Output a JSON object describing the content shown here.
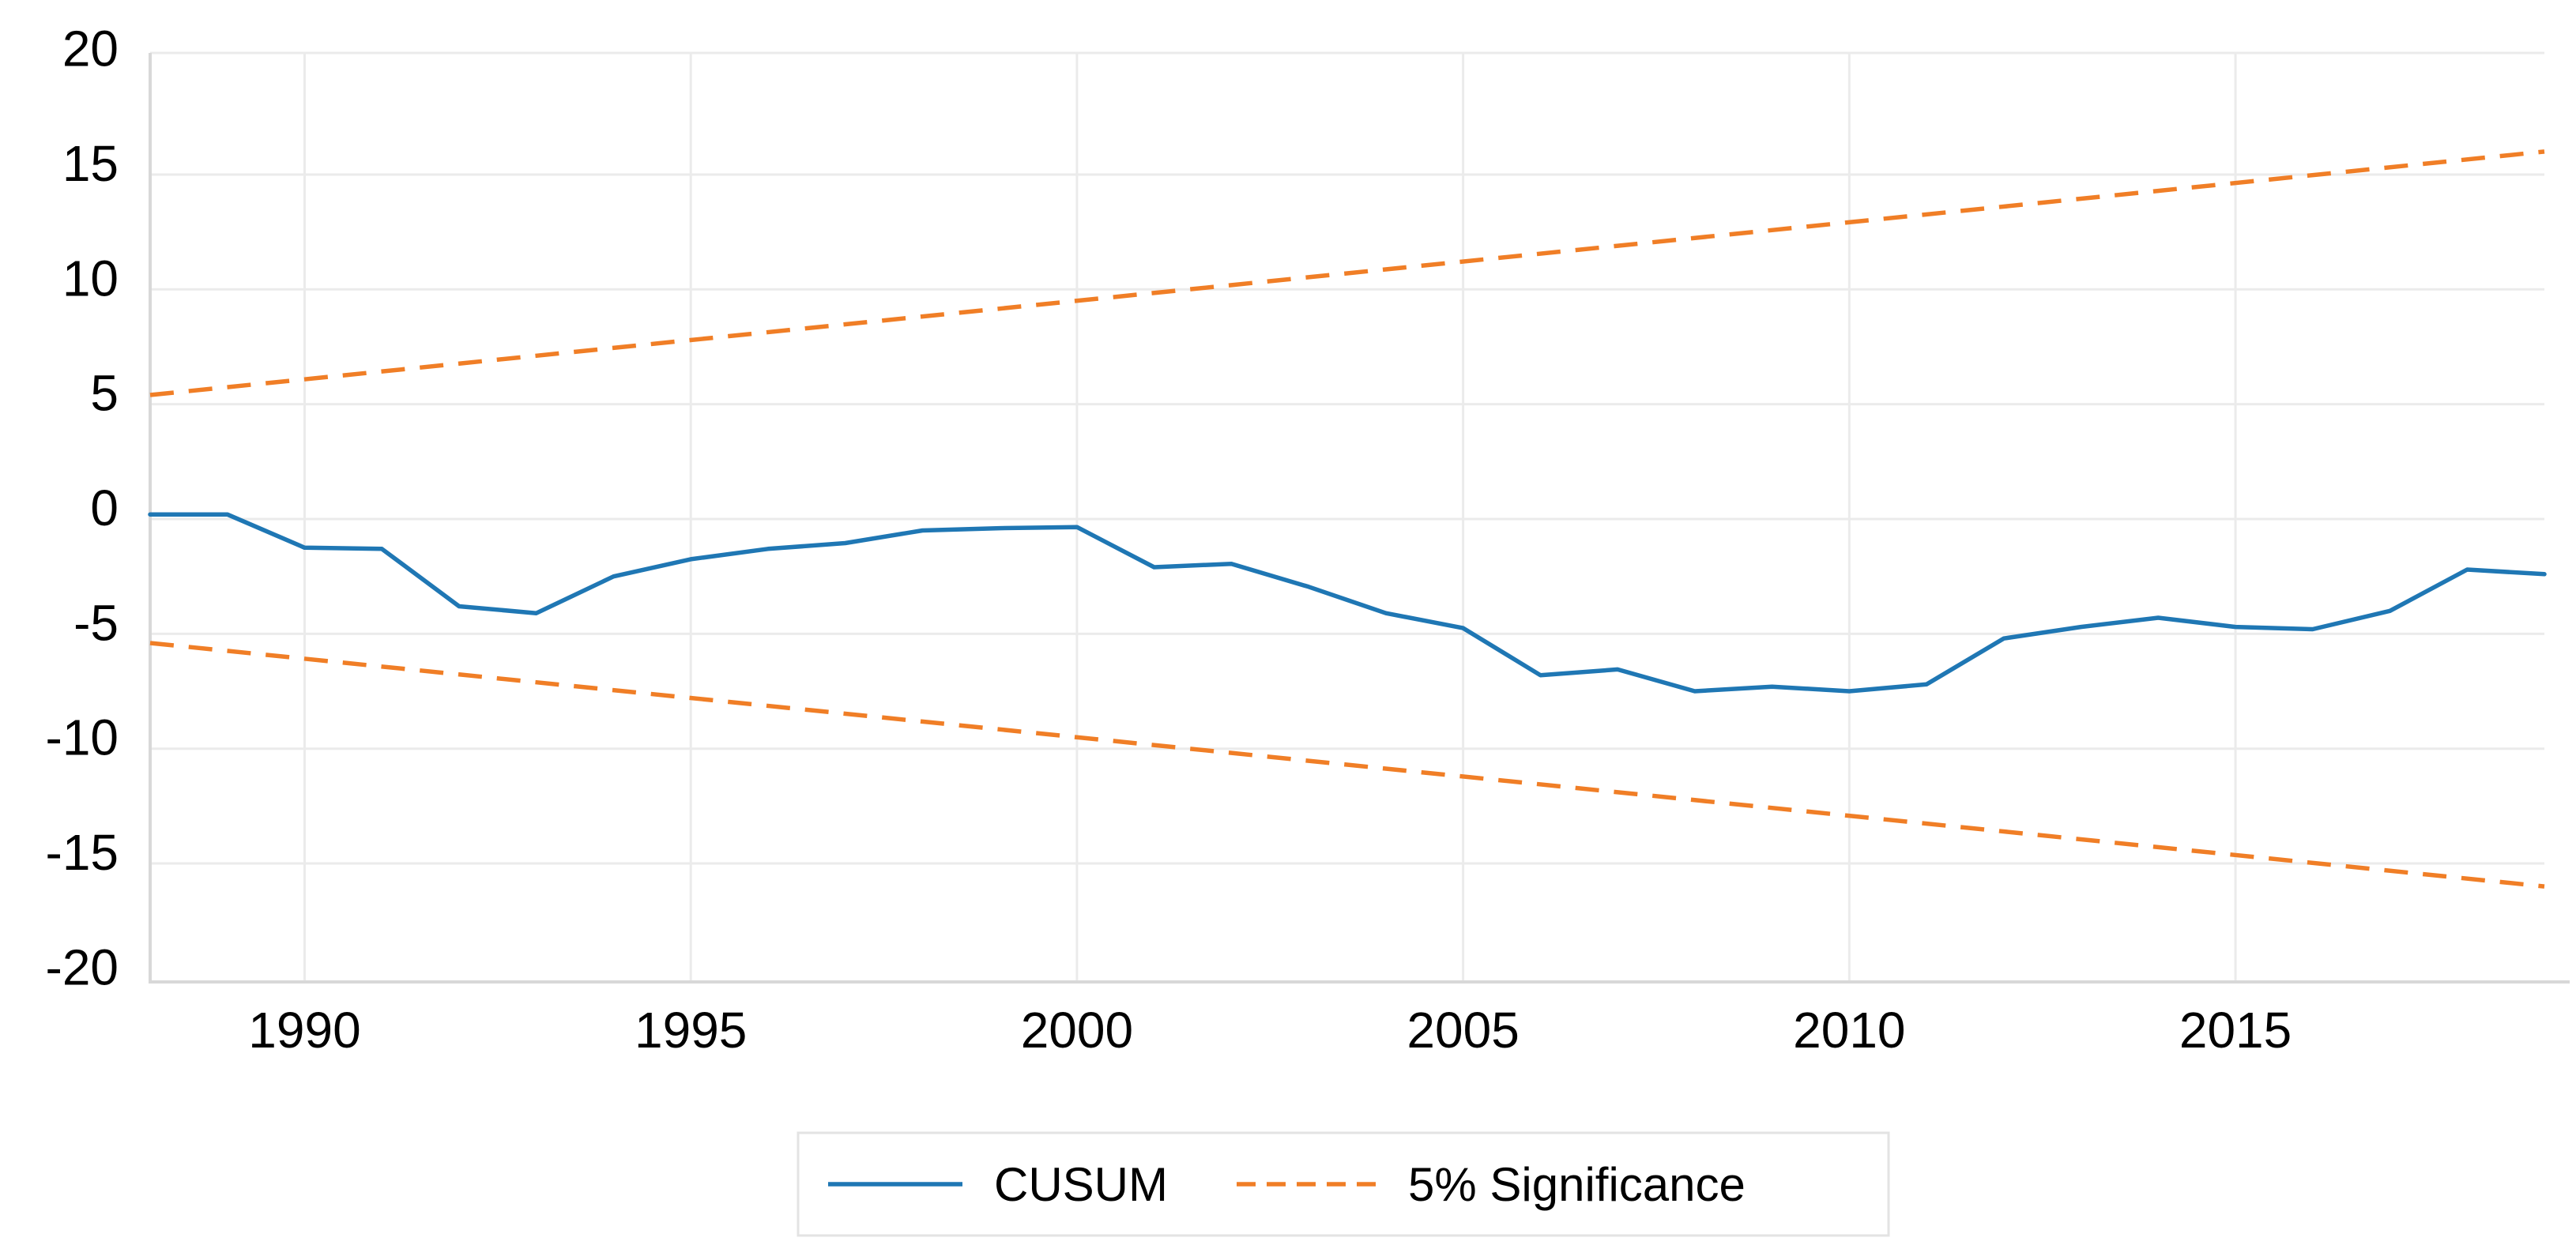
{
  "chart_data": {
    "type": "line",
    "title": "",
    "xlabel": "",
    "ylabel": "",
    "xlim": [
      1988,
      2019
    ],
    "ylim": [
      -20.3,
      20.3
    ],
    "grid": true,
    "legend_position": "bottom-center",
    "xticks": [
      1990,
      1995,
      2000,
      2005,
      2010,
      2015
    ],
    "yticks": [
      20,
      15,
      10,
      5,
      0,
      -5,
      -10,
      -15,
      -20
    ],
    "x": [
      1988,
      1989,
      1990,
      1991,
      1992,
      1993,
      1994,
      1995,
      1996,
      1997,
      1998,
      1999,
      2000,
      2001,
      2002,
      2003,
      2004,
      2005,
      2006,
      2007,
      2008,
      2009,
      2010,
      2011,
      2012,
      2013,
      2014,
      2015,
      2016,
      2017,
      2018,
      2019
    ],
    "series": [
      {
        "name": "CUSUM",
        "style": "solid",
        "color": "#1f77b4",
        "values": [
          0.2,
          0.2,
          -1.25,
          -1.3,
          -3.8,
          -4.1,
          -2.5,
          -1.75,
          -1.3,
          -1.05,
          -0.5,
          -0.4,
          -0.35,
          -2.1,
          -1.95,
          -2.95,
          -4.1,
          -4.75,
          -6.8,
          -6.55,
          -7.5,
          -7.3,
          -7.5,
          -7.2,
          -5.2,
          -4.7,
          -4.3,
          -4.7,
          -4.8,
          -4.0,
          -2.2,
          -2.4
        ]
      },
      {
        "name": "5% Significance (upper bound)",
        "style": "dashed",
        "color": "#f07e26",
        "endpoints": {
          "x": [
            1988,
            2019
          ],
          "y": [
            5.4,
            16.0
          ]
        }
      },
      {
        "name": "5% Significance (lower bound)",
        "style": "dashed",
        "color": "#f07e26",
        "endpoints": {
          "x": [
            1988,
            2019
          ],
          "y": [
            -5.4,
            -16.0
          ]
        }
      }
    ]
  },
  "legend": {
    "cusum_label": "CUSUM",
    "significance_label": "5% Significance"
  },
  "colors": {
    "cusum_line": "#1f77b4",
    "significance_line": "#f07e26",
    "axis_line": "#d8d8d8",
    "gridline": "#ebebeb",
    "legend_border": "#e3e3e3",
    "tick_label": "#000000",
    "background": "#ffffff"
  }
}
